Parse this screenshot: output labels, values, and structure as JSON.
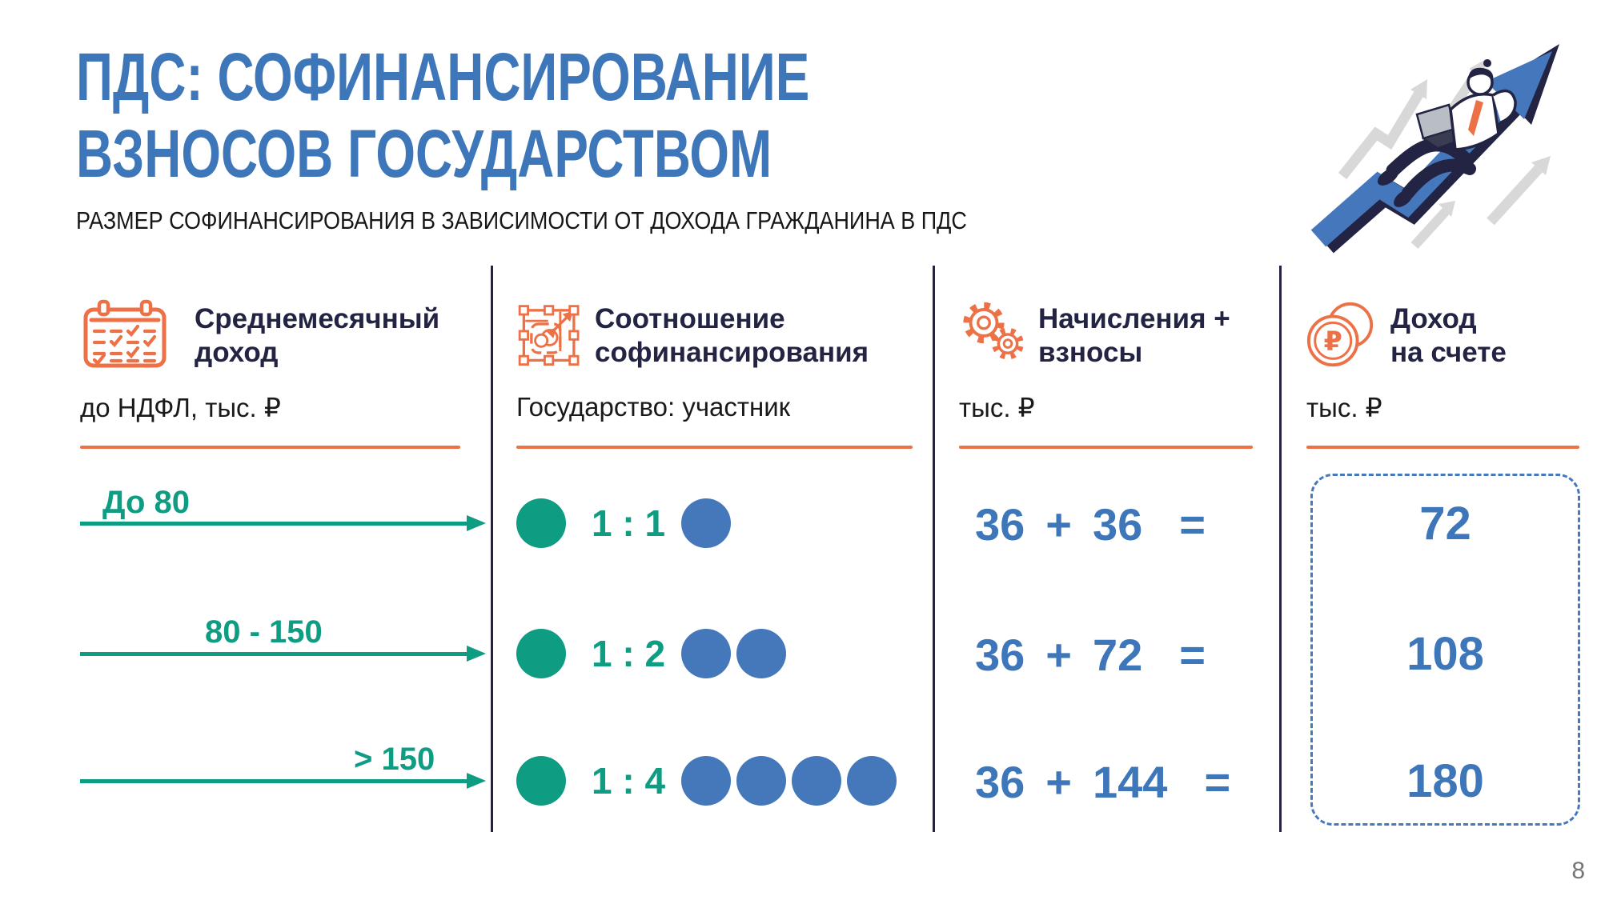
{
  "title": {
    "line1": "ПДС: СОФИНАНСИРОВАНИЕ",
    "line2": "ВЗНОСОВ ГОСУДАРСТВОМ"
  },
  "subtitle": "РАЗМЕР СОФИНАНСИРОВАНИЯ В ЗАВИСИМОСТИ ОТ ДОХОДА ГРАЖДАНИНА В ПДС",
  "colors": {
    "title_blue": "#3d76b9",
    "value_blue": "#3e76ba",
    "circle_blue": "#4478bb",
    "green": "#0e9c82",
    "orange": "#ed7146",
    "navy": "#232343"
  },
  "columns": {
    "income": {
      "icon": "calendar-icon",
      "title_line1": "Среднемесячный",
      "title_line2": "доход",
      "unit": "до НДФЛ, тыс. ₽"
    },
    "ratio": {
      "icon": "selection-frame-icon",
      "title_line1": "Соотношение",
      "title_line2": "софинансирования",
      "unit": "Государство: участник"
    },
    "contributions": {
      "icon": "gears-icon",
      "title_line1": "Начисления +",
      "title_line2": "взносы",
      "unit": "тыс. ₽"
    },
    "account": {
      "icon": "ruble-coins-icon",
      "title_line1": "Доход",
      "title_line2": "на счете",
      "unit": "тыс. ₽"
    }
  },
  "rows": [
    {
      "income_range": "До 80",
      "ratio": "1 : 1",
      "state_circles": 1,
      "participant_circles": 1,
      "contribution": "36",
      "plus": "+",
      "cofinancing": "36",
      "equals": "=",
      "account_total": "72"
    },
    {
      "income_range": "80 - 150",
      "ratio": "1 : 2",
      "state_circles": 1,
      "participant_circles": 2,
      "contribution": "36",
      "plus": "+",
      "cofinancing": "72",
      "equals": "=",
      "account_total": "108"
    },
    {
      "income_range": "> 150",
      "ratio": "1 : 4",
      "state_circles": 1,
      "participant_circles": 4,
      "contribution": "36",
      "plus": "+",
      "cofinancing": "144",
      "equals": "=",
      "account_total": "180"
    }
  ],
  "page_number": "8"
}
